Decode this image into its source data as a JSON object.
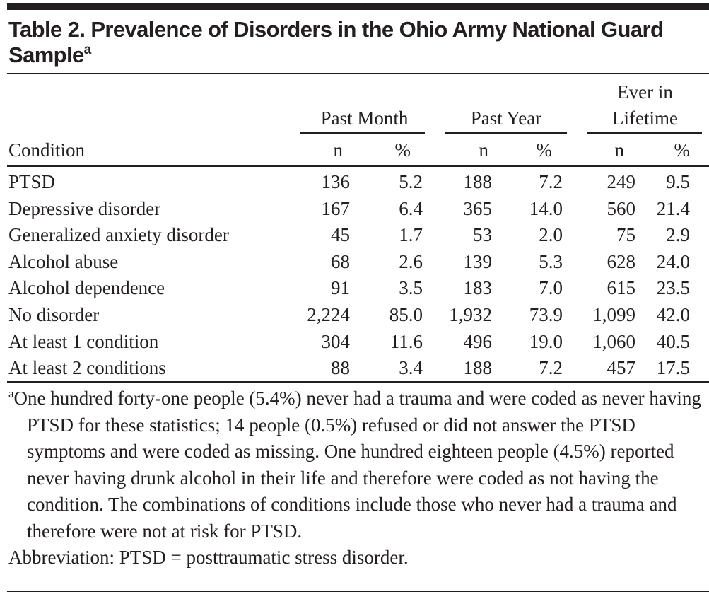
{
  "table": {
    "title": "Table 2. Prevalence of Disorders in the Ohio Army National Guard Sample",
    "title_sup": "a",
    "row_header": "Condition",
    "column_groups": [
      {
        "label_line1": "",
        "label_line2": "Past Month",
        "sub": [
          "n",
          "%"
        ]
      },
      {
        "label_line1": "",
        "label_line2": "Past Year",
        "sub": [
          "n",
          "%"
        ]
      },
      {
        "label_line1": "Ever in",
        "label_line2": "Lifetime",
        "sub": [
          "n",
          "%"
        ]
      }
    ],
    "rows": [
      {
        "condition": "PTSD",
        "values": [
          "136",
          "5.2",
          "188",
          "7.2",
          "249",
          "9.5"
        ]
      },
      {
        "condition": "Depressive disorder",
        "values": [
          "167",
          "6.4",
          "365",
          "14.0",
          "560",
          "21.4"
        ]
      },
      {
        "condition": "Generalized anxiety disorder",
        "values": [
          "45",
          "1.7",
          "53",
          "2.0",
          "75",
          "2.9"
        ]
      },
      {
        "condition": "Alcohol abuse",
        "values": [
          "68",
          "2.6",
          "139",
          "5.3",
          "628",
          "24.0"
        ]
      },
      {
        "condition": "Alcohol dependence",
        "values": [
          "91",
          "3.5",
          "183",
          "7.0",
          "615",
          "23.5"
        ]
      },
      {
        "condition": "No disorder",
        "values": [
          "2,224",
          "85.0",
          "1,932",
          "73.9",
          "1,099",
          "42.0"
        ]
      },
      {
        "condition": "At least 1 condition",
        "values": [
          "304",
          "11.6",
          "496",
          "19.0",
          "1,060",
          "40.5"
        ]
      },
      {
        "condition": "At least 2 conditions",
        "values": [
          "88",
          "3.4",
          "188",
          "7.2",
          "457",
          "17.5"
        ]
      }
    ],
    "footnote_marker": "a",
    "footnote": "One hundred forty-one people (5.4%) never had a trauma and were coded as never having PTSD for these statistics; 14 people (0.5%) refused or did not answer the PTSD symptoms and were coded as missing. One hundred eighteen people (4.5%) reported never having drunk alcohol in their life and therefore were coded as not having the condition. The combinations of conditions include those who never had a trauma and therefore were not at risk for PTSD.",
    "abbreviation": "Abbreviation: PTSD = posttraumatic stress disorder."
  }
}
